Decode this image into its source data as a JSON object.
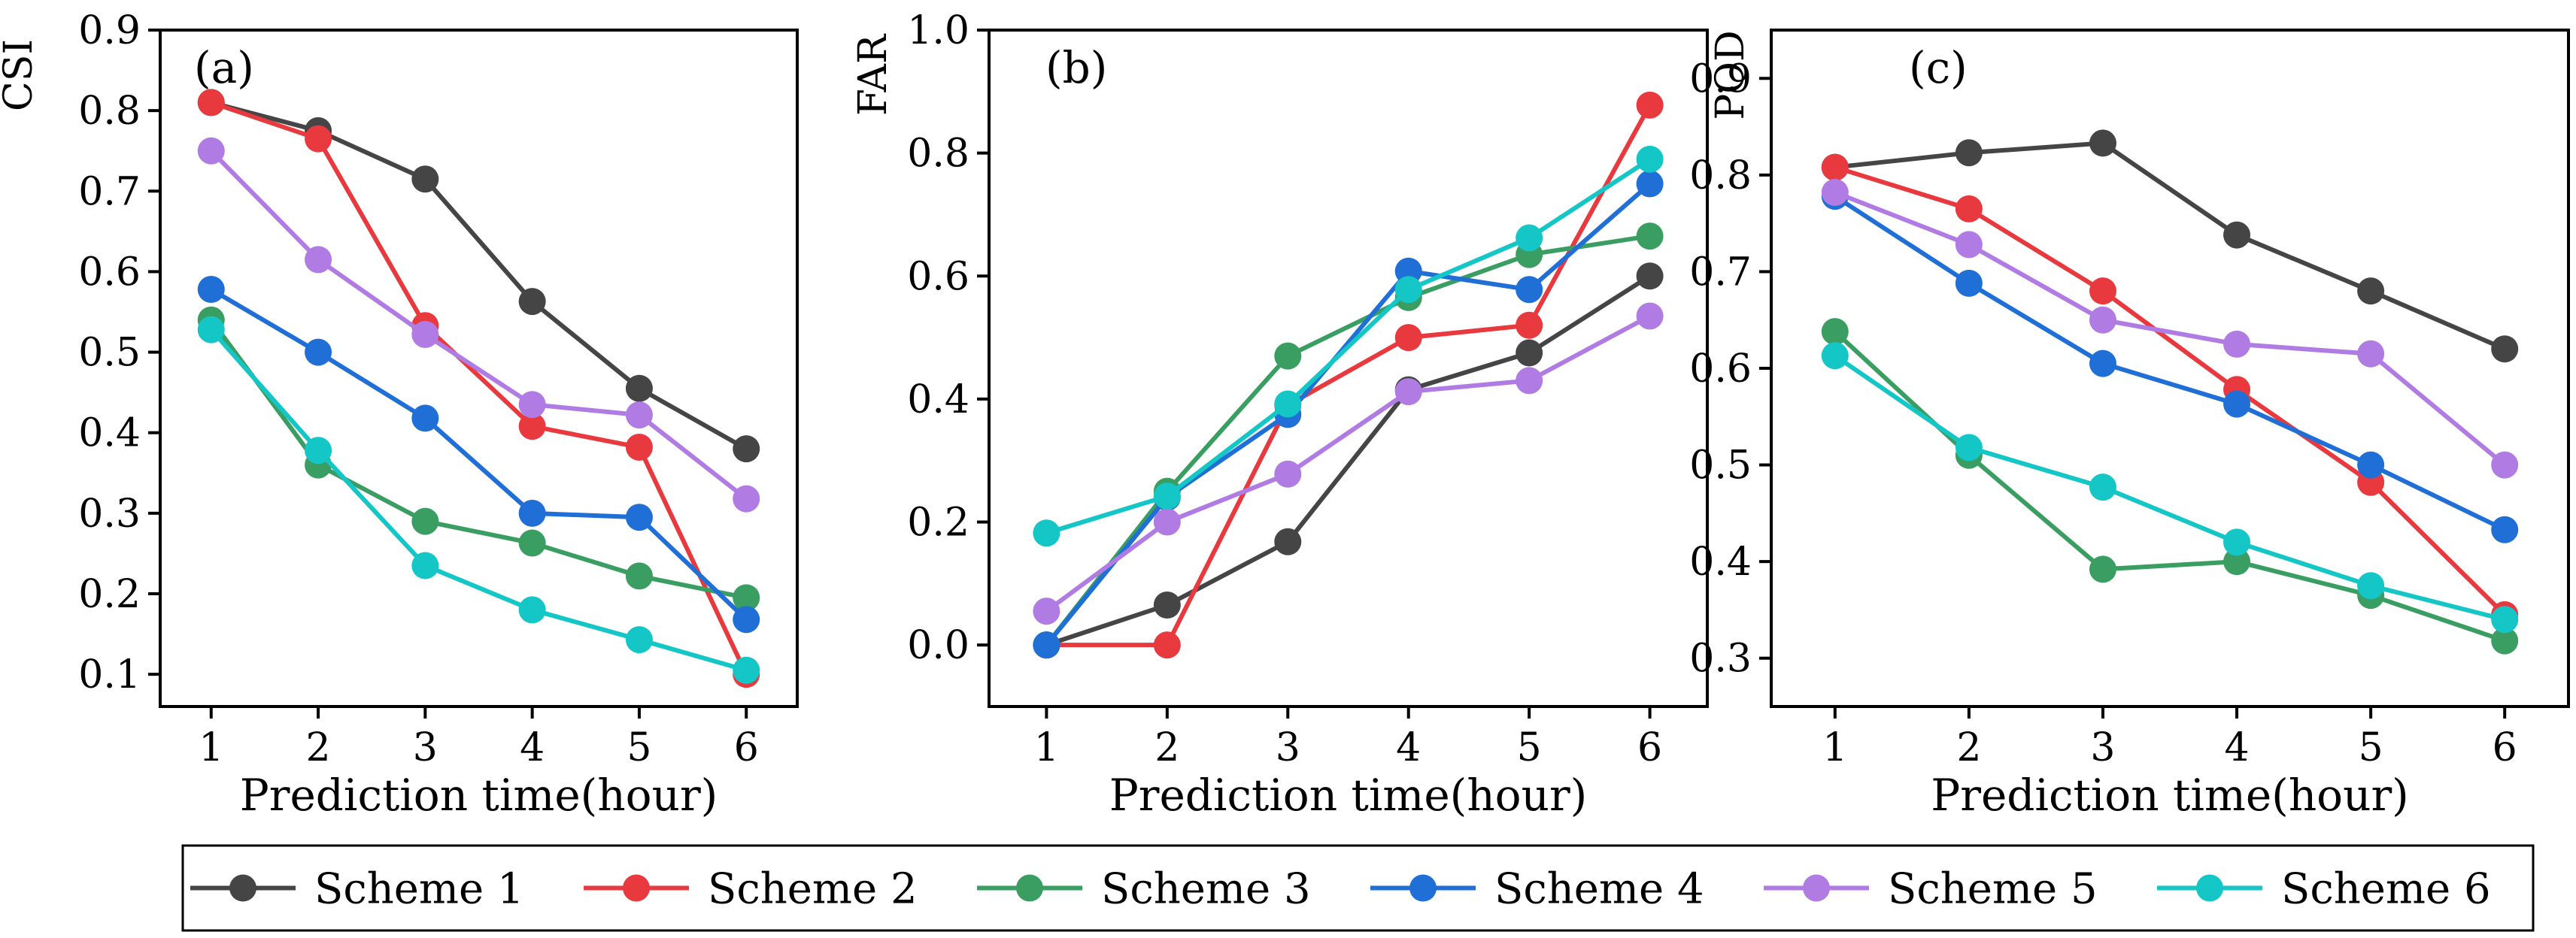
{
  "chart_data": [
    {
      "type": "line",
      "panel_label": "(a)",
      "ylabel": "CSI",
      "xlabel": "Prediction time(hour)",
      "categories": [
        "1",
        "2",
        "3",
        "4",
        "5",
        "6"
      ],
      "ylim": [
        0.06,
        0.9
      ],
      "yticks": [
        "0.1",
        "0.2",
        "0.3",
        "0.4",
        "0.5",
        "0.6",
        "0.7",
        "0.8",
        "0.9"
      ],
      "ytick_values": [
        0.1,
        0.2,
        0.3,
        0.4,
        0.5,
        0.6,
        0.7,
        0.8,
        0.9
      ],
      "series": [
        {
          "name": "Scheme 1",
          "values": [
            0.81,
            0.775,
            0.715,
            0.563,
            0.455,
            0.38
          ]
        },
        {
          "name": "Scheme 2",
          "values": [
            0.81,
            0.765,
            0.533,
            0.408,
            0.382,
            0.1
          ]
        },
        {
          "name": "Scheme 3",
          "values": [
            0.54,
            0.36,
            0.29,
            0.263,
            0.222,
            0.195
          ]
        },
        {
          "name": "Scheme 4",
          "values": [
            0.578,
            0.5,
            0.418,
            0.3,
            0.295,
            0.168
          ]
        },
        {
          "name": "Scheme 5",
          "values": [
            0.75,
            0.615,
            0.522,
            0.435,
            0.422,
            0.318
          ]
        },
        {
          "name": "Scheme 6",
          "values": [
            0.528,
            0.378,
            0.235,
            0.18,
            0.143,
            0.105
          ]
        }
      ]
    },
    {
      "type": "line",
      "panel_label": "(b)",
      "ylabel": "FAR",
      "xlabel": "Prediction time(hour)",
      "categories": [
        "1",
        "2",
        "3",
        "4",
        "5",
        "6"
      ],
      "ylim": [
        -0.1,
        1.0
      ],
      "yticks": [
        "0.0",
        "0.2",
        "0.4",
        "0.6",
        "0.8",
        "1.0"
      ],
      "ytick_values": [
        0.0,
        0.2,
        0.4,
        0.6,
        0.8,
        1.0
      ],
      "series": [
        {
          "name": "Scheme 1",
          "values": [
            0.0,
            0.065,
            0.168,
            0.415,
            0.475,
            0.6
          ]
        },
        {
          "name": "Scheme 2",
          "values": [
            0.0,
            0.0,
            0.39,
            0.5,
            0.52,
            0.878
          ]
        },
        {
          "name": "Scheme 3",
          "values": [
            0.0,
            0.25,
            0.47,
            0.565,
            0.635,
            0.665
          ]
        },
        {
          "name": "Scheme 4",
          "values": [
            0.0,
            0.24,
            0.375,
            0.608,
            0.578,
            0.75
          ]
        },
        {
          "name": "Scheme 5",
          "values": [
            0.055,
            0.2,
            0.278,
            0.412,
            0.43,
            0.535
          ]
        },
        {
          "name": "Scheme 6",
          "values": [
            0.182,
            0.242,
            0.392,
            0.578,
            0.662,
            0.79
          ]
        }
      ]
    },
    {
      "type": "line",
      "panel_label": "(c)",
      "ylabel": "POD",
      "xlabel": "Prediction time(hour)",
      "categories": [
        "1",
        "2",
        "3",
        "4",
        "5",
        "6"
      ],
      "ylim": [
        0.25,
        0.95
      ],
      "yticks": [
        "0.3",
        "0.4",
        "0.5",
        "0.6",
        "0.7",
        "0.8",
        "0.9"
      ],
      "ytick_values": [
        0.3,
        0.4,
        0.5,
        0.6,
        0.7,
        0.8,
        0.9
      ],
      "series": [
        {
          "name": "Scheme 1",
          "values": [
            0.808,
            0.823,
            0.833,
            0.738,
            0.68,
            0.62
          ]
        },
        {
          "name": "Scheme 2",
          "values": [
            0.808,
            0.765,
            0.68,
            0.578,
            0.482,
            0.345
          ]
        },
        {
          "name": "Scheme 3",
          "values": [
            0.638,
            0.51,
            0.392,
            0.4,
            0.365,
            0.318
          ]
        },
        {
          "name": "Scheme 4",
          "values": [
            0.778,
            0.688,
            0.605,
            0.563,
            0.5,
            0.433
          ]
        },
        {
          "name": "Scheme 5",
          "values": [
            0.782,
            0.728,
            0.65,
            0.625,
            0.615,
            0.5
          ]
        },
        {
          "name": "Scheme 6",
          "values": [
            0.613,
            0.518,
            0.477,
            0.42,
            0.375,
            0.34
          ]
        }
      ]
    }
  ],
  "legend": {
    "placement": "bottom",
    "entries": [
      {
        "label": "Scheme 1",
        "color": "#454545"
      },
      {
        "label": "Scheme 2",
        "color": "#e8393f"
      },
      {
        "label": "Scheme 3",
        "color": "#3a9e62"
      },
      {
        "label": "Scheme 4",
        "color": "#1f6fd6"
      },
      {
        "label": "Scheme 5",
        "color": "#b07be3"
      },
      {
        "label": "Scheme 6",
        "color": "#15c6c6"
      }
    ]
  },
  "colors": {
    "scheme_1": "#454545",
    "scheme_2": "#e8393f",
    "scheme_3": "#3a9e62",
    "scheme_4": "#1f6fd6",
    "scheme_5": "#b07be3",
    "scheme_6": "#15c6c6"
  }
}
